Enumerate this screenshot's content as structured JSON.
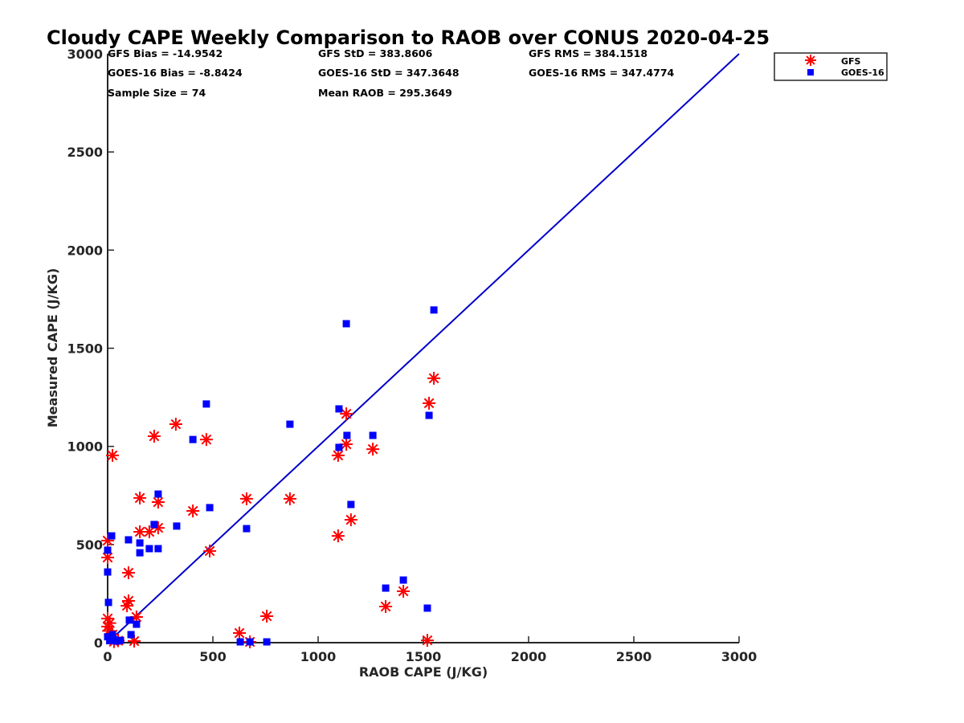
{
  "chart_data": {
    "type": "scatter",
    "title": "Cloudy CAPE Weekly Comparison to RAOB over CONUS 2020-04-25",
    "xlabel": "RAOB CAPE (J/KG)",
    "ylabel": "Measured CAPE (J/KG)",
    "xlim": [
      0,
      3000
    ],
    "ylim": [
      0,
      3000
    ],
    "xticks": [
      0,
      500,
      1000,
      1500,
      2000,
      2500,
      3000
    ],
    "yticks": [
      0,
      500,
      1000,
      1500,
      2000,
      2500,
      3000
    ],
    "xtick_labels": [
      "0",
      "500",
      "1000",
      "1500",
      "2000",
      "2500",
      "3000"
    ],
    "ytick_labels": [
      "0",
      "500",
      "1000",
      "1500",
      "2000",
      "2500",
      "3000"
    ],
    "grid": false,
    "legend_position": "top-right-outside",
    "reference_line": {
      "name": "1:1",
      "x": [
        0,
        3000
      ],
      "y": [
        0,
        3000
      ],
      "color": "#0000cc"
    },
    "stats": [
      [
        "GFS Bias = -14.9542",
        "GFS StD = 383.8606",
        "GFS RMS = 384.1518"
      ],
      [
        "GOES-16 Bias = -8.8424",
        "GOES-16 StD = 347.3648",
        "GOES-16 RMS = 347.4774"
      ],
      [
        "Sample Size = 74",
        "Mean RAOB = 295.3649",
        ""
      ]
    ],
    "series": [
      {
        "name": "GFS",
        "marker": "asterisk",
        "color": "#ff0000",
        "points": [
          [
            23,
            954
          ],
          [
            0,
            520
          ],
          [
            0,
            434
          ],
          [
            99,
            356
          ],
          [
            99,
            213
          ],
          [
            92,
            188
          ],
          [
            0,
            123
          ],
          [
            0,
            82
          ],
          [
            23,
            41
          ],
          [
            126,
            8
          ],
          [
            10,
            100
          ],
          [
            5,
            60
          ],
          [
            15,
            20
          ],
          [
            30,
            5
          ],
          [
            50,
            10
          ],
          [
            137,
            131
          ],
          [
            153,
            737
          ],
          [
            153,
            565
          ],
          [
            198,
            565
          ],
          [
            240,
            716
          ],
          [
            240,
            585
          ],
          [
            221,
            1052
          ],
          [
            324,
            1113
          ],
          [
            405,
            671
          ],
          [
            469,
            1035
          ],
          [
            485,
            467
          ],
          [
            626,
            49
          ],
          [
            660,
            733
          ],
          [
            676,
            4
          ],
          [
            756,
            135
          ],
          [
            866,
            733
          ],
          [
            1095,
            954
          ],
          [
            1095,
            544
          ],
          [
            1134,
            1166
          ],
          [
            1134,
            1011
          ],
          [
            1156,
            626
          ],
          [
            1260,
            986
          ],
          [
            1321,
            184
          ],
          [
            1405,
            262
          ],
          [
            1519,
            12
          ],
          [
            1527,
            1220
          ],
          [
            1550,
            1347
          ]
        ]
      },
      {
        "name": "GOES-16",
        "marker": "square",
        "color": "#0000ff",
        "points": [
          [
            19,
            544
          ],
          [
            0,
            471
          ],
          [
            0,
            360
          ],
          [
            4,
            205
          ],
          [
            99,
            524
          ],
          [
            153,
            508
          ],
          [
            153,
            458
          ],
          [
            198,
            479
          ],
          [
            240,
            479
          ],
          [
            240,
            757
          ],
          [
            221,
            602
          ],
          [
            328,
            594
          ],
          [
            405,
            1035
          ],
          [
            469,
            1216
          ],
          [
            485,
            688
          ],
          [
            103,
            115
          ],
          [
            137,
            94
          ],
          [
            111,
            41
          ],
          [
            61,
            12
          ],
          [
            23,
            41
          ],
          [
            46,
            8
          ],
          [
            0,
            30
          ],
          [
            10,
            10
          ],
          [
            30,
            15
          ],
          [
            630,
            4
          ],
          [
            660,
            581
          ],
          [
            676,
            4
          ],
          [
            756,
            4
          ],
          [
            866,
            1113
          ],
          [
            1099,
            1191
          ],
          [
            1099,
            995
          ],
          [
            1134,
            1625
          ],
          [
            1137,
            1056
          ],
          [
            1156,
            704
          ],
          [
            1260,
            1056
          ],
          [
            1321,
            278
          ],
          [
            1405,
            319
          ],
          [
            1519,
            176
          ],
          [
            1527,
            1158
          ],
          [
            1550,
            1695
          ]
        ]
      }
    ]
  },
  "legend": {
    "items": [
      {
        "label": "GFS",
        "color": "#ff0000",
        "marker": "asterisk-icon"
      },
      {
        "label": "GOES-16",
        "color": "#0000ff",
        "marker": "square-icon"
      }
    ]
  }
}
